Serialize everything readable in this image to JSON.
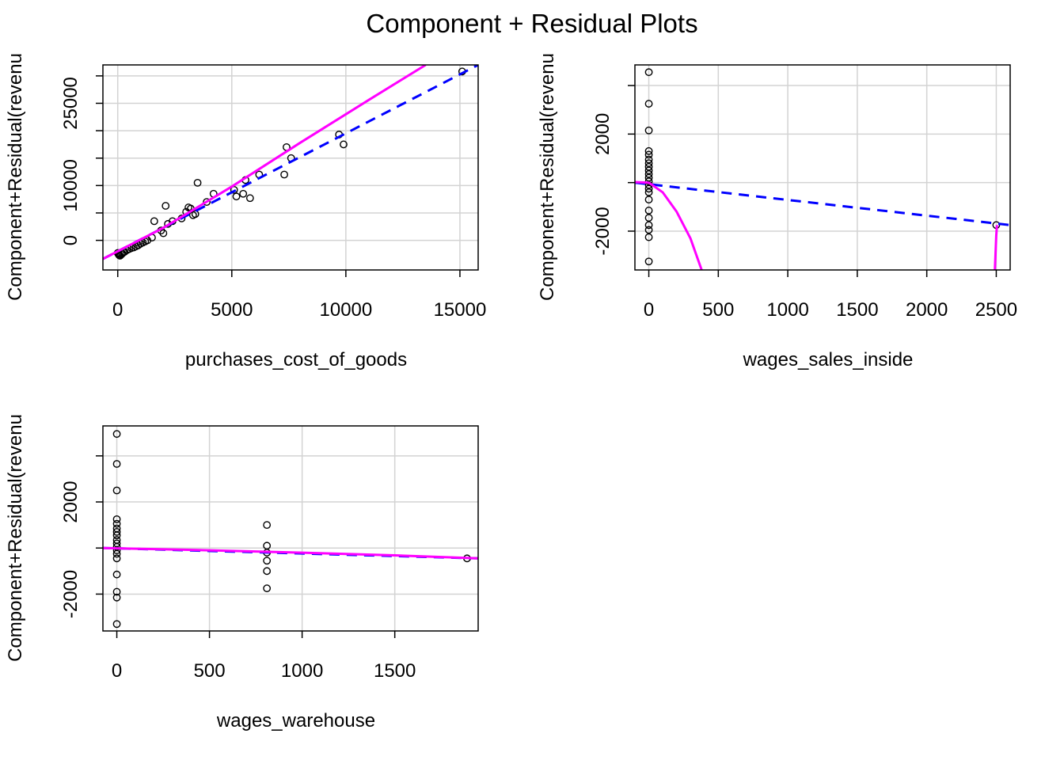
{
  "figure": {
    "title": "Component + Residual Plots"
  },
  "colors": {
    "points": "#000000",
    "linear_fit": "#0000ff",
    "smooth": "#ff00ff",
    "grid": "#d3d3d3",
    "frame": "#000000"
  },
  "chart_data": [
    {
      "type": "scatter",
      "xlabel": "purchases_cost_of_goods",
      "ylabel": "Component+Residual(revenu",
      "xlim": [
        -650,
        15800
      ],
      "ylim": [
        -5400,
        32000
      ],
      "xticks": [
        0,
        5000,
        10000,
        15000
      ],
      "xtick_labels": [
        "0",
        "5000",
        "10000",
        "15000"
      ],
      "yticks": [
        0,
        5000,
        10000,
        15000,
        20000,
        25000,
        30000
      ],
      "ytick_labels": [
        "0",
        "",
        "10000",
        "",
        "",
        "25000",
        ""
      ],
      "grid": true,
      "points": [
        [
          0,
          -2300
        ],
        [
          30,
          -2500
        ],
        [
          60,
          -2700
        ],
        [
          100,
          -2800
        ],
        [
          150,
          -2600
        ],
        [
          200,
          -2400
        ],
        [
          250,
          -2200
        ],
        [
          300,
          -2100
        ],
        [
          400,
          -1800
        ],
        [
          500,
          -1600
        ],
        [
          600,
          -1400
        ],
        [
          700,
          -1300
        ],
        [
          800,
          -1100
        ],
        [
          900,
          -900
        ],
        [
          1000,
          -600
        ],
        [
          1100,
          -400
        ],
        [
          1200,
          -200
        ],
        [
          1300,
          0
        ],
        [
          1500,
          500
        ],
        [
          1600,
          3500
        ],
        [
          1900,
          1800
        ],
        [
          2000,
          1300
        ],
        [
          2100,
          6300
        ],
        [
          2200,
          3000
        ],
        [
          2400,
          3500
        ],
        [
          2800,
          4000
        ],
        [
          3000,
          5200
        ],
        [
          3100,
          6000
        ],
        [
          3200,
          5800
        ],
        [
          3300,
          4600
        ],
        [
          3400,
          4800
        ],
        [
          3500,
          10500
        ],
        [
          3900,
          7000
        ],
        [
          4200,
          8500
        ],
        [
          5100,
          9200
        ],
        [
          5200,
          8000
        ],
        [
          5500,
          8500
        ],
        [
          5600,
          11000
        ],
        [
          5800,
          7700
        ],
        [
          6200,
          12000
        ],
        [
          7300,
          12000
        ],
        [
          7400,
          17000
        ],
        [
          7600,
          15000
        ],
        [
          9700,
          19300
        ],
        [
          9900,
          17500
        ],
        [
          15100,
          30800
        ]
      ],
      "linear_fit": [
        [
          -650,
          -3400
        ],
        [
          15800,
          32000
        ]
      ],
      "smooth": [
        [
          -650,
          -3400
        ],
        [
          2000,
          2300
        ],
        [
          5000,
          9800
        ],
        [
          8000,
          17800
        ],
        [
          11000,
          25600
        ],
        [
          13500,
          32000
        ]
      ]
    },
    {
      "type": "scatter",
      "xlabel": "wages_sales_inside",
      "ylabel": "Component+Residual(revenu",
      "xlim": [
        -100,
        2600
      ],
      "ylim": [
        -3600,
        4850
      ],
      "xticks": [
        0,
        500,
        1000,
        1500,
        2000,
        2500
      ],
      "xtick_labels": [
        "0",
        "500",
        "1000",
        "1500",
        "2000",
        "2500"
      ],
      "yticks": [
        -4000,
        -2000,
        0,
        2000,
        4000
      ],
      "ytick_labels": [
        "",
        "-2000",
        "",
        "2000",
        ""
      ],
      "grid": true,
      "points": [
        [
          0,
          4550
        ],
        [
          0,
          3250
        ],
        [
          0,
          2150
        ],
        [
          0,
          1300
        ],
        [
          0,
          1150
        ],
        [
          0,
          950
        ],
        [
          0,
          800
        ],
        [
          0,
          650
        ],
        [
          0,
          500
        ],
        [
          0,
          350
        ],
        [
          0,
          200
        ],
        [
          0,
          50
        ],
        [
          0,
          -100
        ],
        [
          0,
          -250
        ],
        [
          0,
          -400
        ],
        [
          0,
          -700
        ],
        [
          0,
          -1150
        ],
        [
          0,
          -1450
        ],
        [
          0,
          -1750
        ],
        [
          0,
          -1950
        ],
        [
          0,
          -2250
        ],
        [
          0,
          -3250
        ],
        [
          2500,
          -1750
        ]
      ],
      "linear_fit": [
        [
          -100,
          0
        ],
        [
          2600,
          -1750
        ]
      ],
      "smooth_segments": [
        [
          [
            -100,
            20
          ],
          [
            0,
            0
          ],
          [
            100,
            -400
          ],
          [
            200,
            -1200
          ],
          [
            300,
            -2300
          ],
          [
            380,
            -3600
          ]
        ],
        [
          [
            2490,
            -3600
          ],
          [
            2500,
            -2200
          ],
          [
            2505,
            -1750
          ]
        ]
      ]
    },
    {
      "type": "scatter",
      "xlabel": "wages_warehouse",
      "ylabel": "Component+Residual(revenu",
      "xlim": [
        -75,
        1950
      ],
      "ylim": [
        -3600,
        5300
      ],
      "xticks": [
        0,
        500,
        1000,
        1500
      ],
      "xtick_labels": [
        "0",
        "500",
        "1000",
        "1500"
      ],
      "yticks": [
        -4000,
        -2000,
        0,
        2000,
        4000
      ],
      "ytick_labels": [
        "",
        "-2000",
        "",
        "2000",
        ""
      ],
      "grid": true,
      "points": [
        [
          0,
          4950
        ],
        [
          0,
          3650
        ],
        [
          0,
          2500
        ],
        [
          0,
          1250
        ],
        [
          0,
          1050
        ],
        [
          0,
          850
        ],
        [
          0,
          700
        ],
        [
          0,
          550
        ],
        [
          0,
          350
        ],
        [
          0,
          200
        ],
        [
          0,
          50
        ],
        [
          0,
          -100
        ],
        [
          0,
          -250
        ],
        [
          0,
          -450
        ],
        [
          0,
          -1150
        ],
        [
          0,
          -1900
        ],
        [
          0,
          -2150
        ],
        [
          0,
          -3300
        ],
        [
          810,
          1000
        ],
        [
          810,
          100
        ],
        [
          810,
          -200
        ],
        [
          810,
          -550
        ],
        [
          810,
          -1000
        ],
        [
          810,
          -1750
        ],
        [
          1890,
          -450
        ]
      ],
      "linear_fit": [
        [
          -75,
          0
        ],
        [
          1950,
          -450
        ]
      ],
      "smooth": [
        [
          -75,
          0
        ],
        [
          500,
          -100
        ],
        [
          1000,
          -200
        ],
        [
          1500,
          -320
        ],
        [
          1950,
          -450
        ]
      ]
    }
  ]
}
